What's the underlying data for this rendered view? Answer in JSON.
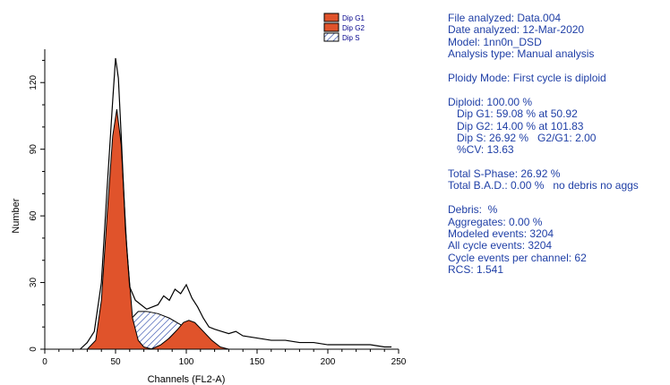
{
  "chart_data": {
    "type": "area",
    "xlabel": "Channels (FL2-A)",
    "ylabel": "Number",
    "xlim": [
      0,
      250
    ],
    "ylim": [
      0,
      135
    ],
    "xticks": [
      0,
      50,
      100,
      150,
      200,
      250
    ],
    "yticks": [
      0,
      30,
      60,
      90,
      120
    ],
    "legend": [
      "Dip G1",
      "Dip G2",
      "Dip S"
    ],
    "legend_position": "top-right",
    "colors": {
      "dip_g1": "#e0532b",
      "dip_g2": "#e0532b",
      "dip_s_hatch": "#1f3fa6",
      "outline": "#000000"
    },
    "series": [
      {
        "name": "Dip G1",
        "x": [
          30,
          36,
          40,
          44,
          48,
          50.9,
          54,
          58,
          62,
          66,
          70,
          76
        ],
        "values": [
          0,
          4,
          22,
          60,
          96,
          108,
          92,
          45,
          14,
          4,
          1,
          0
        ]
      },
      {
        "name": "Dip G2",
        "x": [
          75,
          82,
          88,
          94,
          98,
          101.8,
          106,
          112,
          118,
          124,
          130
        ],
        "values": [
          0,
          2,
          5,
          9,
          12,
          13,
          12,
          8,
          4,
          1,
          0
        ]
      },
      {
        "name": "Dip S",
        "x": [
          45,
          52,
          60,
          66,
          72,
          80,
          88,
          96,
          104,
          112,
          120
        ],
        "values": [
          0,
          6,
          13,
          17,
          17,
          16,
          14,
          11,
          7,
          3,
          0
        ]
      }
    ],
    "data_total": {
      "x": [
        25,
        30,
        35,
        40,
        44,
        48,
        50,
        52,
        54,
        57,
        60,
        64,
        68,
        72,
        76,
        80,
        84,
        88,
        92,
        96,
        100,
        104,
        108,
        112,
        116,
        120,
        125,
        130,
        135,
        140,
        150,
        160,
        170,
        180,
        190,
        200,
        210,
        220,
        230,
        240,
        245
      ],
      "values": [
        0,
        3,
        8,
        30,
        72,
        112,
        131,
        122,
        96,
        54,
        28,
        22,
        20,
        18,
        19,
        20,
        24,
        22,
        27,
        25,
        29,
        23,
        19,
        14,
        10,
        9,
        8,
        7,
        8,
        6,
        5,
        4,
        4,
        3,
        3,
        2,
        2,
        2,
        2,
        1,
        1
      ]
    }
  },
  "info": [
    "File analyzed: Data.004",
    "Date analyzed: 12-Mar-2020",
    "Model: 1nn0n_DSD",
    "Analysis type: Manual analysis",
    "",
    "Ploidy Mode: First cycle is diploid",
    "",
    "Diploid: 100.00 %",
    "   Dip G1: 59.08 % at 50.92",
    "   Dip G2: 14.00 % at 101.83",
    "   Dip S: 26.92 %   G2/G1: 2.00",
    "   %CV: 13.63",
    "",
    "Total S-Phase: 26.92 %",
    "Total B.A.D.: 0.00 %   no debris no aggs",
    "",
    "Debris:  %",
    "Aggregates: 0.00 %",
    "Modeled events: 3204",
    "All cycle events: 3204",
    "Cycle events per channel: 62",
    "RCS: 1.541"
  ]
}
